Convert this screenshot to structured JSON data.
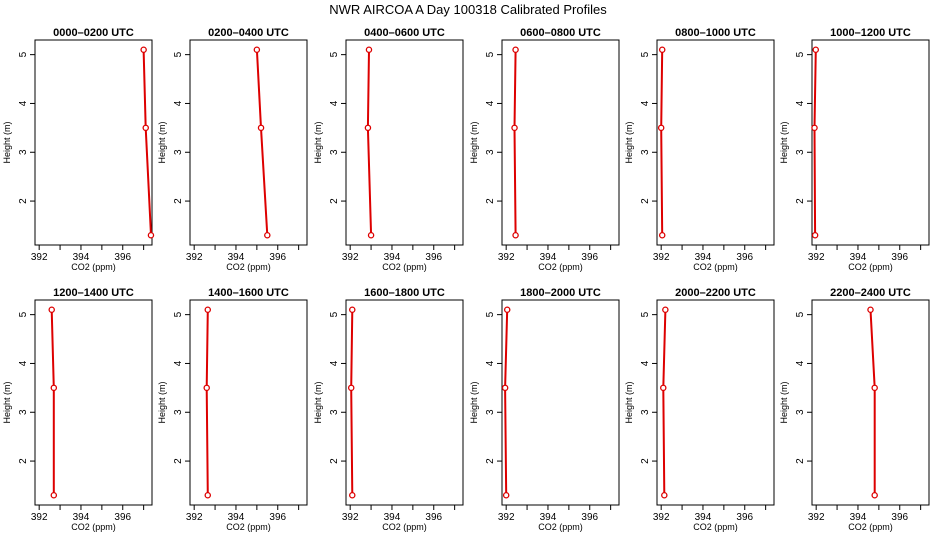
{
  "title": "NWR AIRCOA A  Day 100318  Calibrated Profiles",
  "colors": {
    "profile": "#dd0000",
    "frame": "#000000"
  },
  "axes": {
    "xlabel": "CO2 (ppm)",
    "ylabel": "Height (m)",
    "xlim": [
      391.8,
      397.4
    ],
    "ylim": [
      1.1,
      5.3
    ],
    "xticks": [
      392,
      393,
      394,
      395,
      396,
      397
    ],
    "xtick_labels": [
      "392",
      "",
      "394",
      "",
      "396",
      ""
    ],
    "yticks": [
      2,
      3,
      4,
      5
    ],
    "ytick_labels": [
      "2",
      "3",
      "4",
      "5"
    ]
  },
  "chart_data": [
    {
      "type": "line",
      "title": "0000–0200 UTC",
      "x": [
        397.35,
        397.1,
        397.0
      ],
      "y": [
        1.3,
        3.5,
        5.1
      ]
    },
    {
      "type": "line",
      "title": "0200–0400 UTC",
      "x": [
        395.5,
        395.2,
        395.0
      ],
      "y": [
        1.3,
        3.5,
        5.1
      ]
    },
    {
      "type": "line",
      "title": "0400–0600 UTC",
      "x": [
        393.0,
        392.85,
        392.9
      ],
      "y": [
        1.3,
        3.5,
        5.1
      ]
    },
    {
      "type": "line",
      "title": "0600–0800 UTC",
      "x": [
        392.45,
        392.4,
        392.45
      ],
      "y": [
        1.3,
        3.5,
        5.1
      ]
    },
    {
      "type": "line",
      "title": "0800–1000 UTC",
      "x": [
        392.05,
        392.0,
        392.05
      ],
      "y": [
        1.3,
        3.5,
        5.1
      ]
    },
    {
      "type": "line",
      "title": "1000–1200 UTC",
      "x": [
        391.95,
        391.92,
        391.98
      ],
      "y": [
        1.3,
        3.5,
        5.1
      ]
    },
    {
      "type": "line",
      "title": "1200–1400 UTC",
      "x": [
        392.7,
        392.7,
        392.6
      ],
      "y": [
        1.3,
        3.5,
        5.1
      ]
    },
    {
      "type": "line",
      "title": "1400–1600 UTC",
      "x": [
        392.65,
        392.6,
        392.65
      ],
      "y": [
        1.3,
        3.5,
        5.1
      ]
    },
    {
      "type": "line",
      "title": "1600–1800 UTC",
      "x": [
        392.1,
        392.05,
        392.1
      ],
      "y": [
        1.3,
        3.5,
        5.1
      ]
    },
    {
      "type": "line",
      "title": "1800–2000 UTC",
      "x": [
        392.0,
        391.95,
        392.05
      ],
      "y": [
        1.3,
        3.5,
        5.1
      ]
    },
    {
      "type": "line",
      "title": "2000–2200 UTC",
      "x": [
        392.15,
        392.1,
        392.2
      ],
      "y": [
        1.3,
        3.5,
        5.1
      ]
    },
    {
      "type": "line",
      "title": "2200–2400 UTC",
      "x": [
        394.8,
        394.8,
        394.6
      ],
      "y": [
        1.3,
        3.5,
        5.1
      ]
    }
  ]
}
